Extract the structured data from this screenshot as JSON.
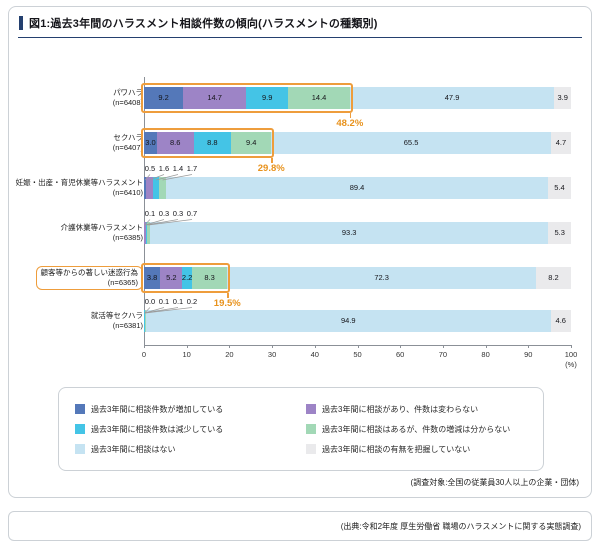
{
  "title": "図1:過去3年間のハラスメント相談件数の傾向(ハラスメントの種類別)",
  "survey_note": "(調査対象:全国の従業員30人以上の企業・団体)",
  "source_note": "(出典:令和2年度 厚生労働省 職場のハラスメントに関する実態調査)",
  "colors": {
    "accent_navy": "#24406f",
    "highlight_orange": "#ee9d3c"
  },
  "chart_data": {
    "type": "bar",
    "orientation": "horizontal",
    "stacked": true,
    "xlim": [
      0,
      100
    ],
    "x_ticks": [
      "0",
      "10",
      "20",
      "30",
      "40",
      "50",
      "60",
      "70",
      "80",
      "90",
      "100"
    ],
    "x_unit": "(%)",
    "categories": [
      "パワハラ",
      "セクハラ",
      "妊娠・出産・育児休業等ハラスメント",
      "介護休業等ハラスメント",
      "顧客等からの著しい迷惑行為",
      "就活等セクハラ"
    ],
    "category_n_labels": [
      "(n=6408)",
      "(n=6407)",
      "(n=6410)",
      "(n=6385)",
      "(n=6365)",
      "(n=6381)"
    ],
    "series": [
      {
        "name": "過去3年間に相談件数が増加している",
        "color": "#5478b9",
        "values": [
          "9.2",
          "3.0",
          "0.5",
          "0.1",
          "3.8",
          "0.0"
        ]
      },
      {
        "name": "過去3年間に相談があり、件数は変わらない",
        "color": "#9d84c6",
        "values": [
          "14.7",
          "8.6",
          "1.6",
          "0.3",
          "5.2",
          "0.1"
        ]
      },
      {
        "name": "過去3年間に相談件数は減少している",
        "color": "#44c4e6",
        "values": [
          "9.9",
          "8.8",
          "1.4",
          "0.3",
          "2.2",
          "0.1"
        ]
      },
      {
        "name": "過去3年間に相談はあるが、件数の増減は分からない",
        "color": "#a2d8b6",
        "values": [
          "14.4",
          "9.4",
          "1.7",
          "0.7",
          "8.3",
          "0.2"
        ]
      },
      {
        "name": "過去3年間に相談はない",
        "color": "#c5e3f2",
        "values": [
          "47.9",
          "65.5",
          "89.4",
          "93.3",
          "72.3",
          "94.9"
        ]
      },
      {
        "name": "過去3年間に相談の有無を把握していない",
        "color": "#eaeaec",
        "values": [
          "3.9",
          "4.7",
          "5.4",
          "5.3",
          "8.2",
          "4.6"
        ]
      }
    ],
    "annotations": [
      {
        "category": "パワハラ",
        "label": "48.2%"
      },
      {
        "category": "セクハラ",
        "label": "29.8%"
      },
      {
        "category": "顧客等からの著しい迷惑行為",
        "label": "19.5%"
      }
    ],
    "boxed_category": "顧客等からの著しい迷惑行為",
    "value_label_layout": [
      "inside",
      "inside",
      "above",
      "above",
      "inside",
      "above"
    ],
    "legend_position": "bottom"
  }
}
